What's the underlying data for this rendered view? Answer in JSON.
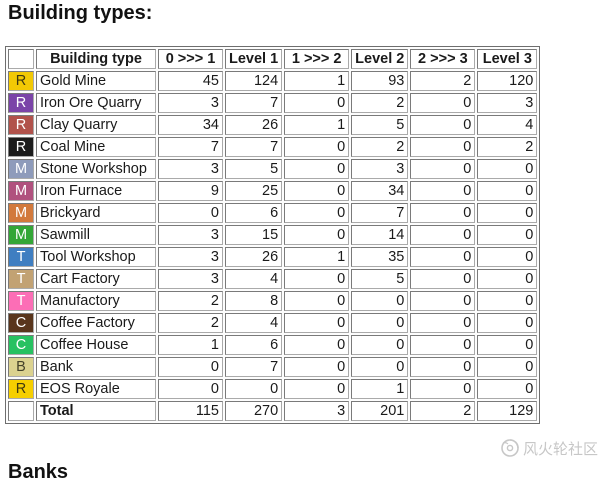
{
  "page": {
    "title": "Building types:",
    "next_section_title": "Banks",
    "watermark_text": "风火轮社区"
  },
  "table": {
    "columns": [
      "",
      "Building type",
      "0 >>> 1",
      "Level 1",
      "1 >>> 2",
      "Level 2",
      "2 >>> 3",
      "Level 3"
    ],
    "rows": [
      {
        "badge": "R",
        "badge_color": "#f2c905",
        "badge_text_color": "#3f3a10",
        "name": "Gold Mine",
        "values": [
          45,
          124,
          1,
          93,
          2,
          120
        ]
      },
      {
        "badge": "R",
        "badge_color": "#7b44a8",
        "badge_text_color": "#ffffff",
        "name": "Iron Ore Quarry",
        "values": [
          3,
          7,
          0,
          2,
          0,
          3
        ]
      },
      {
        "badge": "R",
        "badge_color": "#b1524b",
        "badge_text_color": "#ffffff",
        "name": "Clay Quarry",
        "values": [
          34,
          26,
          1,
          5,
          0,
          4
        ]
      },
      {
        "badge": "R",
        "badge_color": "#1b1b1b",
        "badge_text_color": "#ffffff",
        "name": "Coal Mine",
        "values": [
          7,
          7,
          0,
          2,
          0,
          2
        ]
      },
      {
        "badge": "M",
        "badge_color": "#8e9bbb",
        "badge_text_color": "#ffffff",
        "name": "Stone Workshop",
        "values": [
          3,
          5,
          0,
          3,
          0,
          0
        ]
      },
      {
        "badge": "M",
        "badge_color": "#b0517e",
        "badge_text_color": "#ffffff",
        "name": "Iron Furnace",
        "values": [
          9,
          25,
          0,
          34,
          0,
          0
        ]
      },
      {
        "badge": "M",
        "badge_color": "#d2793c",
        "badge_text_color": "#ffffff",
        "name": "Brickyard",
        "values": [
          0,
          6,
          0,
          7,
          0,
          0
        ]
      },
      {
        "badge": "M",
        "badge_color": "#33a637",
        "badge_text_color": "#ffffff",
        "name": "Sawmill",
        "values": [
          3,
          15,
          0,
          14,
          0,
          0
        ]
      },
      {
        "badge": "T",
        "badge_color": "#3f7ec1",
        "badge_text_color": "#ffffff",
        "name": "Tool Workshop",
        "values": [
          3,
          26,
          1,
          35,
          0,
          0
        ]
      },
      {
        "badge": "T",
        "badge_color": "#c2a273",
        "badge_text_color": "#ffffff",
        "name": "Cart Factory",
        "values": [
          3,
          4,
          0,
          5,
          0,
          0
        ]
      },
      {
        "badge": "T",
        "badge_color": "#fc6eb6",
        "badge_text_color": "#ffffff",
        "name": "Manufactory",
        "values": [
          2,
          8,
          0,
          0,
          0,
          0
        ]
      },
      {
        "badge": "C",
        "badge_color": "#59351c",
        "badge_text_color": "#ffffff",
        "name": "Coffee Factory",
        "values": [
          2,
          4,
          0,
          0,
          0,
          0
        ]
      },
      {
        "badge": "C",
        "badge_color": "#27c161",
        "badge_text_color": "#ffffff",
        "name": "Coffee House",
        "values": [
          1,
          6,
          0,
          0,
          0,
          0
        ]
      },
      {
        "badge": "B",
        "badge_color": "#dbd28f",
        "badge_text_color": "#44422a",
        "name": "Bank",
        "values": [
          0,
          7,
          0,
          0,
          0,
          0
        ]
      },
      {
        "badge": "R",
        "badge_color": "#f6cf00",
        "badge_text_color": "#3f3a10",
        "name": "EOS Royale",
        "values": [
          0,
          0,
          0,
          1,
          0,
          0
        ]
      }
    ],
    "total": {
      "label": "Total",
      "values": [
        115,
        270,
        3,
        201,
        2,
        129
      ]
    }
  }
}
